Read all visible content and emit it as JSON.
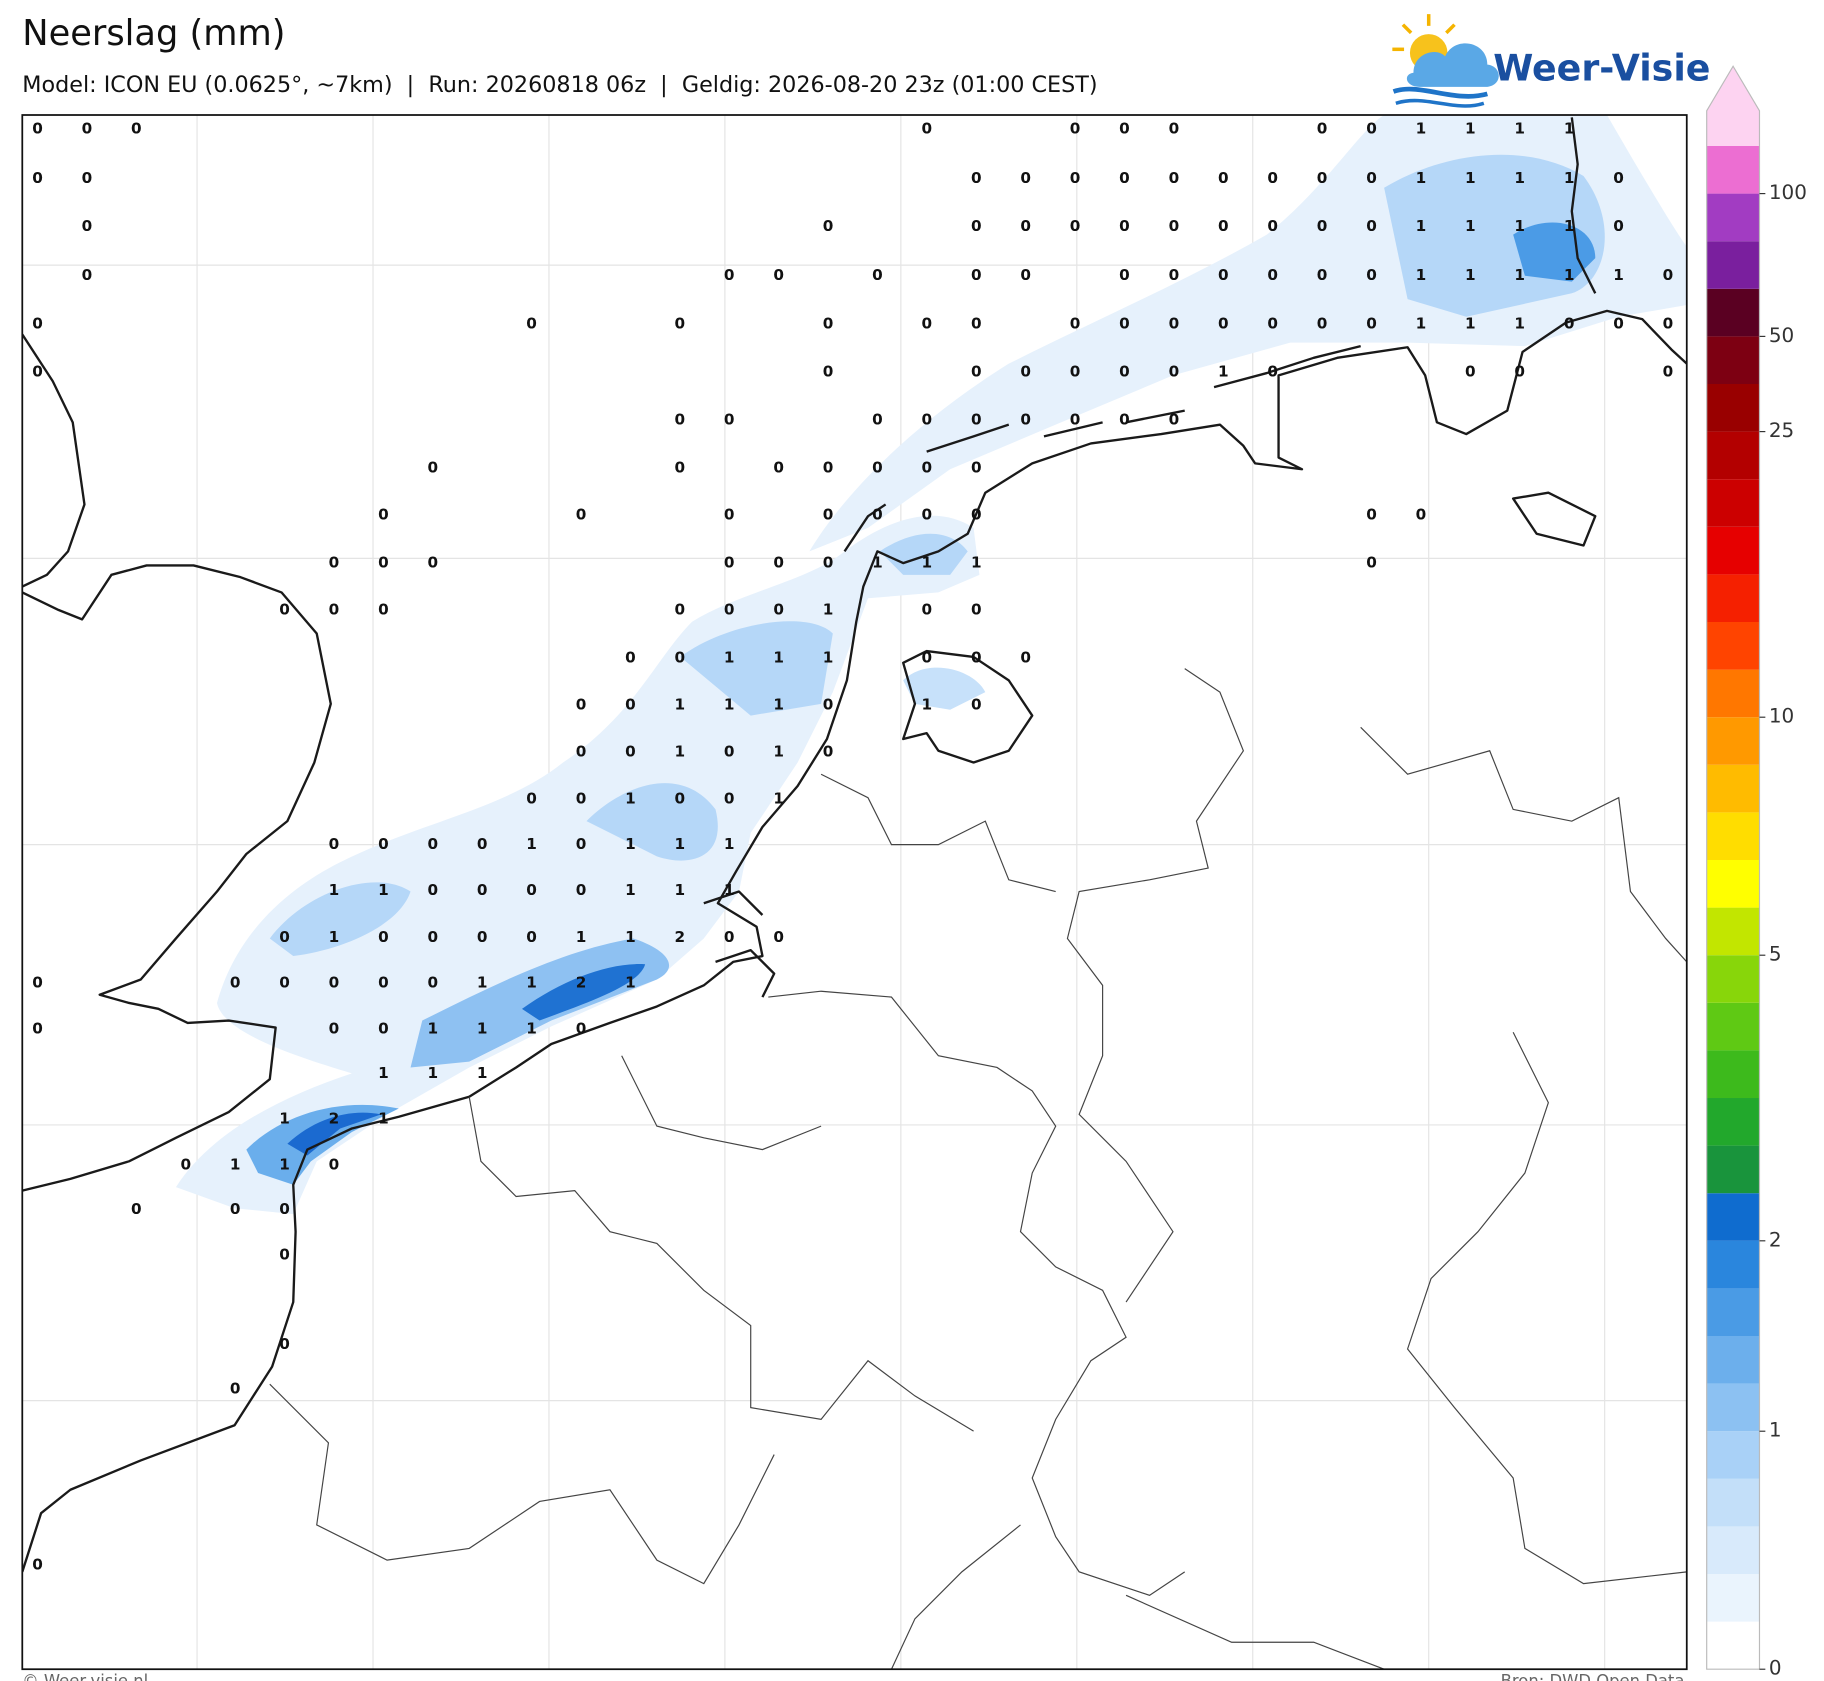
{
  "header": {
    "title": "Neerslag (mm)",
    "subtitle": "Model: ICON EU (0.0625°, ~7km)  |  Run: 20260818 06z  |  Geldig: 2026-08-20 23z (01:00 CEST)",
    "logo": "Weer-Visie"
  },
  "map": {
    "grid_values": [
      [
        0,
        0,
        0,
        null,
        null,
        null,
        null,
        null,
        null,
        null,
        null,
        null,
        null,
        null,
        null,
        null,
        null,
        null,
        0,
        null,
        null,
        0,
        0,
        0,
        null,
        null,
        0,
        0,
        1,
        1,
        1,
        1,
        null,
        null
      ],
      [
        0,
        0,
        null,
        null,
        null,
        null,
        null,
        null,
        null,
        null,
        null,
        null,
        null,
        null,
        null,
        null,
        null,
        null,
        null,
        0,
        0,
        0,
        0,
        0,
        0,
        0,
        0,
        0,
        1,
        1,
        1,
        1,
        0,
        null
      ],
      [
        null,
        0,
        null,
        null,
        null,
        null,
        null,
        null,
        null,
        null,
        null,
        null,
        null,
        null,
        null,
        null,
        0,
        null,
        null,
        0,
        0,
        0,
        0,
        0,
        0,
        0,
        0,
        0,
        1,
        1,
        1,
        1,
        0,
        null
      ],
      [
        null,
        0,
        null,
        null,
        null,
        null,
        null,
        null,
        null,
        null,
        null,
        null,
        null,
        null,
        0,
        0,
        null,
        0,
        null,
        0,
        0,
        null,
        0,
        0,
        0,
        0,
        0,
        0,
        1,
        1,
        1,
        1,
        1,
        0
      ],
      [
        0,
        null,
        null,
        null,
        null,
        null,
        null,
        null,
        null,
        null,
        0,
        null,
        null,
        0,
        null,
        null,
        0,
        null,
        0,
        0,
        null,
        0,
        0,
        0,
        0,
        0,
        0,
        0,
        1,
        1,
        1,
        0,
        0,
        0
      ],
      [
        0,
        null,
        null,
        null,
        null,
        null,
        null,
        null,
        null,
        null,
        null,
        null,
        null,
        null,
        null,
        null,
        0,
        null,
        null,
        0,
        0,
        0,
        0,
        0,
        1,
        0,
        null,
        null,
        null,
        0,
        0,
        null,
        null,
        0
      ],
      [
        null,
        null,
        null,
        null,
        null,
        null,
        null,
        null,
        null,
        null,
        null,
        null,
        null,
        0,
        0,
        null,
        null,
        0,
        0,
        0,
        0,
        0,
        0,
        0,
        null,
        null,
        null,
        null,
        null,
        null,
        null,
        null,
        null,
        null
      ],
      [
        null,
        null,
        null,
        null,
        null,
        null,
        null,
        null,
        0,
        null,
        null,
        null,
        null,
        0,
        null,
        0,
        0,
        0,
        0,
        0,
        null,
        null,
        null,
        null,
        null,
        null,
        null,
        null,
        null,
        null,
        null,
        null,
        null,
        null
      ],
      [
        null,
        null,
        null,
        null,
        null,
        null,
        null,
        0,
        null,
        null,
        null,
        0,
        null,
        null,
        0,
        null,
        0,
        0,
        0,
        0,
        null,
        null,
        null,
        null,
        null,
        null,
        null,
        0,
        0,
        null,
        null,
        null,
        null,
        null
      ],
      [
        null,
        null,
        null,
        null,
        null,
        null,
        0,
        0,
        0,
        null,
        null,
        null,
        null,
        null,
        0,
        0,
        0,
        1,
        1,
        1,
        null,
        null,
        null,
        null,
        null,
        null,
        null,
        0,
        null,
        null,
        null,
        null,
        null,
        null
      ],
      [
        null,
        null,
        null,
        null,
        null,
        0,
        0,
        0,
        null,
        null,
        null,
        null,
        null,
        0,
        0,
        0,
        1,
        null,
        0,
        0,
        null,
        null,
        null,
        null,
        null,
        null,
        null,
        null,
        null,
        null,
        null,
        null,
        null,
        null
      ],
      [
        null,
        null,
        null,
        null,
        null,
        null,
        null,
        null,
        null,
        null,
        null,
        null,
        0,
        0,
        1,
        1,
        1,
        null,
        0,
        0,
        0,
        null,
        null,
        null,
        null,
        null,
        null,
        null,
        null,
        null,
        null,
        null,
        null,
        null
      ],
      [
        null,
        null,
        null,
        null,
        null,
        null,
        null,
        null,
        null,
        null,
        null,
        0,
        0,
        1,
        1,
        1,
        0,
        null,
        1,
        0,
        null,
        null,
        null,
        null,
        null,
        null,
        null,
        null,
        null,
        null,
        null,
        null,
        null,
        null
      ],
      [
        null,
        null,
        null,
        null,
        null,
        null,
        null,
        null,
        null,
        null,
        null,
        0,
        0,
        1,
        0,
        1,
        0,
        null,
        null,
        null,
        null,
        null,
        null,
        null,
        null,
        null,
        null,
        null,
        null,
        null,
        null,
        null,
        null,
        null
      ],
      [
        null,
        null,
        null,
        null,
        null,
        null,
        null,
        null,
        null,
        null,
        0,
        0,
        1,
        0,
        0,
        1,
        null,
        null,
        null,
        null,
        null,
        null,
        null,
        null,
        null,
        null,
        null,
        null,
        null,
        null,
        null,
        null,
        null,
        null
      ],
      [
        null,
        null,
        null,
        null,
        null,
        null,
        0,
        0,
        0,
        0,
        1,
        0,
        1,
        1,
        1,
        null,
        null,
        null,
        null,
        null,
        null,
        null,
        null,
        null,
        null,
        null,
        null,
        null,
        null,
        null,
        null,
        null,
        null,
        null
      ],
      [
        null,
        null,
        null,
        null,
        null,
        null,
        1,
        1,
        0,
        0,
        0,
        0,
        1,
        1,
        1,
        null,
        null,
        null,
        null,
        null,
        null,
        null,
        null,
        null,
        null,
        null,
        null,
        null,
        null,
        null,
        null,
        null,
        null,
        null
      ],
      [
        null,
        null,
        null,
        null,
        null,
        0,
        1,
        0,
        0,
        0,
        0,
        1,
        1,
        2,
        0,
        0,
        null,
        null,
        null,
        null,
        null,
        null,
        null,
        null,
        null,
        null,
        null,
        null,
        null,
        null,
        null,
        null,
        null,
        null
      ],
      [
        0,
        null,
        null,
        null,
        0,
        0,
        0,
        0,
        0,
        1,
        1,
        2,
        1,
        null,
        null,
        null,
        null,
        null,
        null,
        null,
        null,
        null,
        null,
        null,
        null,
        null,
        null,
        null,
        null,
        null,
        null,
        null,
        null,
        null
      ],
      [
        0,
        null,
        null,
        null,
        null,
        null,
        0,
        0,
        1,
        1,
        1,
        0,
        null,
        null,
        null,
        null,
        null,
        null,
        null,
        null,
        null,
        null,
        null,
        null,
        null,
        null,
        null,
        null,
        null,
        null,
        null,
        null,
        null,
        null
      ],
      [
        null,
        null,
        null,
        null,
        null,
        null,
        null,
        1,
        1,
        1,
        null,
        null,
        null,
        null,
        null,
        null,
        null,
        null,
        null,
        null,
        null,
        null,
        null,
        null,
        null,
        null,
        null,
        null,
        null,
        null,
        null,
        null,
        null,
        null
      ],
      [
        null,
        null,
        null,
        null,
        null,
        1,
        2,
        1,
        null,
        null,
        null,
        null,
        null,
        null,
        null,
        null,
        null,
        null,
        null,
        null,
        null,
        null,
        null,
        null,
        null,
        null,
        null,
        null,
        null,
        null,
        null,
        null,
        null,
        null
      ],
      [
        null,
        null,
        null,
        0,
        1,
        1,
        0,
        null,
        null,
        null,
        null,
        null,
        null,
        null,
        null,
        null,
        null,
        null,
        null,
        null,
        null,
        null,
        null,
        null,
        null,
        null,
        null,
        null,
        null,
        null,
        null,
        null,
        null,
        null
      ],
      [
        null,
        null,
        0,
        null,
        0,
        0,
        null,
        null,
        null,
        null,
        null,
        null,
        null,
        null,
        null,
        null,
        null,
        null,
        null,
        null,
        null,
        null,
        null,
        null,
        null,
        null,
        null,
        null,
        null,
        null,
        null,
        null,
        null,
        null
      ],
      [
        null,
        null,
        null,
        null,
        null,
        0,
        null,
        null,
        null,
        null,
        null,
        null,
        null,
        null,
        null,
        null,
        null,
        null,
        null,
        null,
        null,
        null,
        null,
        null,
        null,
        null,
        null,
        null,
        null,
        null,
        null,
        null,
        null,
        null
      ],
      [
        null,
        null,
        null,
        null,
        null,
        null,
        null,
        null,
        null,
        null,
        null,
        null,
        null,
        null,
        null,
        null,
        null,
        null,
        null,
        null,
        null,
        null,
        null,
        null,
        null,
        null,
        null,
        null,
        null,
        null,
        null,
        null,
        null,
        null
      ],
      [
        null,
        null,
        null,
        null,
        null,
        0,
        null,
        null,
        null,
        null,
        null,
        null,
        null,
        null,
        null,
        null,
        null,
        null,
        null,
        null,
        null,
        null,
        null,
        null,
        null,
        null,
        null,
        null,
        null,
        null,
        null,
        null,
        null,
        null
      ],
      [
        null,
        null,
        null,
        null,
        0,
        null,
        null,
        null,
        null,
        null,
        null,
        null,
        null,
        null,
        null,
        null,
        null,
        null,
        null,
        null,
        null,
        null,
        null,
        null,
        null,
        null,
        null,
        null,
        null,
        null,
        null,
        null,
        null,
        null
      ],
      [
        null,
        null,
        null,
        null,
        null,
        null,
        null,
        null,
        null,
        null,
        null,
        null,
        null,
        null,
        null,
        null,
        null,
        null,
        null,
        null,
        null,
        null,
        null,
        null,
        null,
        null,
        null,
        null,
        null,
        null,
        null,
        null,
        null,
        null
      ],
      [
        null,
        null,
        null,
        null,
        null,
        null,
        null,
        null,
        null,
        null,
        null,
        null,
        null,
        null,
        null,
        null,
        null,
        null,
        null,
        null,
        null,
        null,
        null,
        null,
        null,
        null,
        null,
        null,
        null,
        null,
        null,
        null,
        null,
        null
      ],
      [
        null,
        null,
        null,
        null,
        null,
        null,
        null,
        null,
        null,
        null,
        null,
        null,
        null,
        null,
        null,
        null,
        null,
        null,
        null,
        null,
        null,
        null,
        null,
        null,
        null,
        null,
        null,
        null,
        null,
        null,
        null,
        null,
        null,
        null
      ],
      [
        0,
        null,
        null,
        null,
        null,
        null,
        null,
        null,
        null,
        null,
        null,
        null,
        null,
        null,
        null,
        null,
        null,
        null,
        null,
        null,
        null,
        null,
        null,
        null,
        null,
        null,
        null,
        null,
        null,
        null,
        null,
        null,
        null,
        null
      ]
    ]
  },
  "colorbar": {
    "colors": [
      "#ffffff",
      "#eaf4fd",
      "#d8eafb",
      "#c3dff9",
      "#a9d1f7",
      "#8cc1f2",
      "#6cafec",
      "#4a9be5",
      "#2a86dd",
      "#0f6ccf",
      "#19943c",
      "#22a82c",
      "#3dba1c",
      "#5fc914",
      "#88d60a",
      "#c2e600",
      "#ffff00",
      "#ffdd00",
      "#ffbb00",
      "#ff9900",
      "#ff7700",
      "#ff4400",
      "#f52000",
      "#e60000",
      "#cc0000",
      "#b30000",
      "#990000",
      "#7d0012",
      "#5a0022",
      "#7a1f9e",
      "#a23cc2",
      "#ec6ed2",
      "#fdd3f1"
    ],
    "ticks": [
      0,
      1,
      2,
      5,
      10,
      25,
      50,
      100
    ]
  },
  "footer": {
    "left": "© Weer-visie.nl",
    "right": "Bron: DWD Open Data"
  }
}
